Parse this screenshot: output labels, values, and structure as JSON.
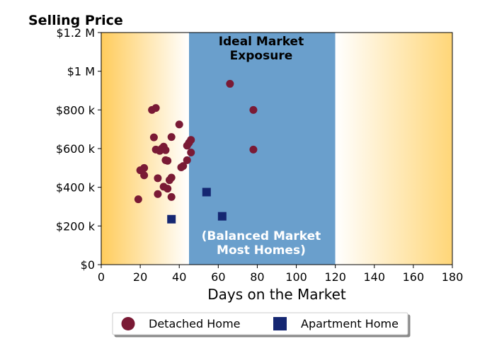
{
  "chart_data": {
    "type": "scatter",
    "title": "Selling Price",
    "xlabel": "Days on the Market",
    "ylabel": "",
    "xlim": [
      0,
      180
    ],
    "ylim": [
      0,
      1200000
    ],
    "x_ticks": [
      0,
      20,
      40,
      60,
      80,
      100,
      120,
      140,
      160,
      180
    ],
    "x_tick_labels": [
      "0",
      "20",
      "40",
      "60",
      "80",
      "100",
      "120",
      "140",
      "160",
      "180"
    ],
    "y_ticks": [
      0,
      200000,
      400000,
      600000,
      800000,
      1000000,
      1200000
    ],
    "y_tick_labels": [
      "$0",
      "$200 k",
      "$400 k",
      "$600 k",
      "$800 k",
      "$1 M",
      "$1.2 M"
    ],
    "grid": false,
    "legend_position": "bottom-center",
    "background_zones": [
      {
        "x_start": 0,
        "x_end": 45,
        "style": "gradient",
        "from_color": "#ffcc5c",
        "to_color": "#ffffff"
      },
      {
        "x_start": 45,
        "x_end": 120,
        "style": "solid",
        "color": "#6a9fcc"
      },
      {
        "x_start": 120,
        "x_end": 180,
        "style": "gradient",
        "from_color": "#ffffff",
        "to_color": "#ffd678"
      }
    ],
    "annotations": [
      {
        "text_lines": [
          "Ideal Market",
          "Exposure"
        ],
        "x": 82,
        "y": 1150000,
        "color": "#000000"
      },
      {
        "text_lines": [
          "(Balanced Market",
          "Most Homes)"
        ],
        "x": 82,
        "y": 130000,
        "color": "#ffffff"
      }
    ],
    "series": [
      {
        "name": "Detached Home",
        "marker": "circle",
        "color": "#7a1a35",
        "points": [
          [
            19,
            338000
          ],
          [
            20,
            488000
          ],
          [
            22,
            500000
          ],
          [
            22,
            462000
          ],
          [
            26,
            800000
          ],
          [
            28,
            810000
          ],
          [
            27,
            658000
          ],
          [
            28,
            595000
          ],
          [
            29,
            447000
          ],
          [
            29,
            365000
          ],
          [
            30,
            588000
          ],
          [
            31,
            600000
          ],
          [
            32,
            610000
          ],
          [
            32,
            403000
          ],
          [
            33,
            592000
          ],
          [
            33,
            540000
          ],
          [
            34,
            537000
          ],
          [
            34,
            393000
          ],
          [
            35,
            437000
          ],
          [
            36,
            450000
          ],
          [
            36,
            350000
          ],
          [
            36,
            660000
          ],
          [
            40,
            725000
          ],
          [
            41,
            503000
          ],
          [
            42,
            510000
          ],
          [
            44,
            540000
          ],
          [
            44,
            615000
          ],
          [
            45,
            630000
          ],
          [
            46,
            645000
          ],
          [
            46,
            580000
          ],
          [
            66,
            935000
          ],
          [
            78,
            800000
          ],
          [
            78,
            595000
          ]
        ]
      },
      {
        "name": "Apartment Home",
        "marker": "square",
        "color": "#152772",
        "points": [
          [
            36,
            235000
          ],
          [
            54,
            375000
          ],
          [
            62,
            250000
          ]
        ]
      }
    ]
  },
  "legend": {
    "detached_label": "Detached Home",
    "apartment_label": "Apartment Home"
  }
}
